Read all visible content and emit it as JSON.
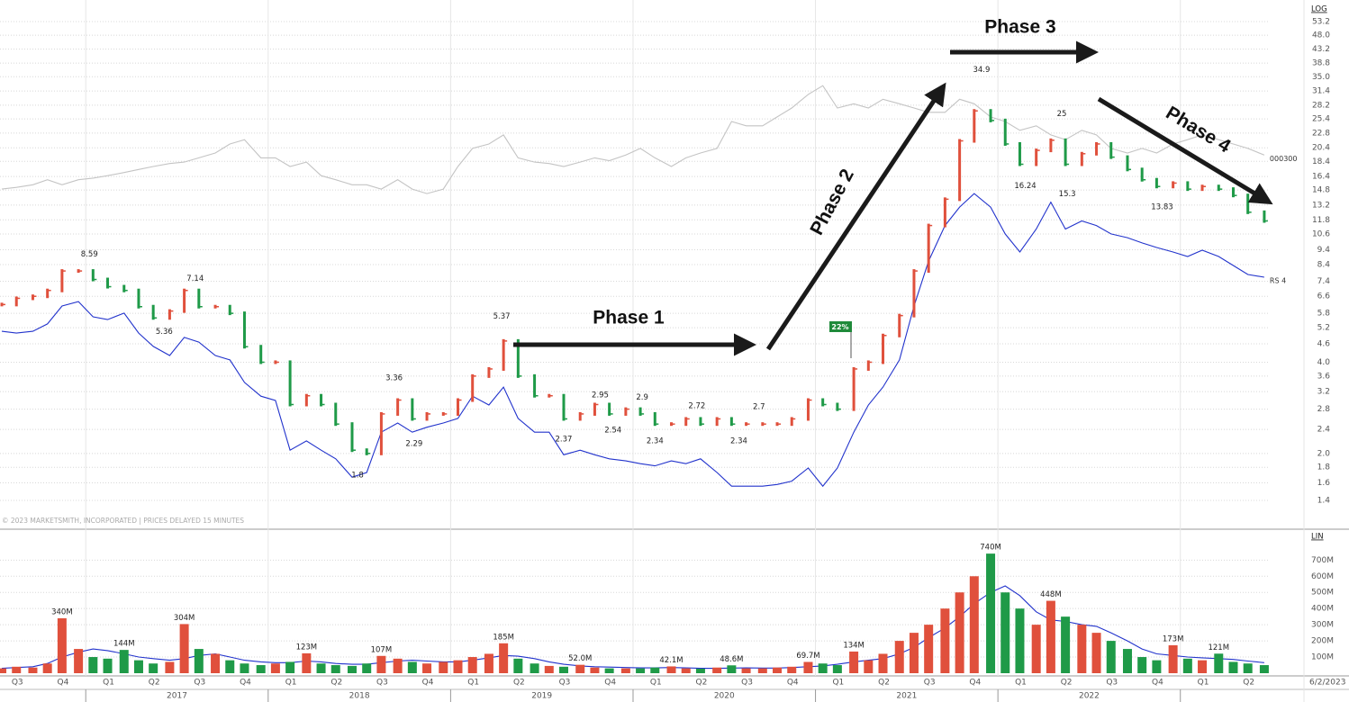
{
  "chart_data": [
    {
      "type": "stock",
      "y_scale_label": "LOG",
      "log_scale": true,
      "grid": true,
      "note": "© 2023 MARKETSMITH, INCORPORATED | PRICES DELAYED 15 MINUTES",
      "badge": "22%",
      "annotations": [
        "Phase 1",
        "Phase 2",
        "Phase 3",
        "Phase 4"
      ],
      "up_color": "#e0503c",
      "down_color": "#1f9a48",
      "xlim": [
        2016.53,
        2023.49
      ],
      "ylim": [
        1.148,
        62.7
      ],
      "yticks": [
        53.2,
        {
          "value": 48,
          "label": "48.0"
        },
        43.2,
        38.8,
        {
          "value": 35,
          "label": "35.0"
        },
        31.4,
        28.2,
        25.4,
        22.8,
        20.4,
        18.4,
        16.4,
        14.8,
        13.2,
        11.8,
        10.6,
        9.4,
        8.4,
        7.4,
        6.6,
        5.8,
        5.2,
        4.6,
        {
          "value": 4,
          "label": "4.0"
        },
        3.6,
        3.2,
        2.8,
        2.4,
        {
          "value": 2,
          "label": "2.0"
        },
        1.8,
        1.6,
        1.4
      ],
      "x": [
        2016.54,
        2016.62,
        2016.71,
        2016.79,
        2016.87,
        2016.96,
        2017.04,
        2017.12,
        2017.21,
        2017.29,
        2017.37,
        2017.46,
        2017.54,
        2017.62,
        2017.71,
        2017.79,
        2017.87,
        2017.96,
        2018.04,
        2018.12,
        2018.21,
        2018.29,
        2018.37,
        2018.46,
        2018.54,
        2018.62,
        2018.71,
        2018.79,
        2018.87,
        2018.96,
        2019.04,
        2019.12,
        2019.21,
        2019.29,
        2019.37,
        2019.46,
        2019.54,
        2019.62,
        2019.71,
        2019.79,
        2019.87,
        2019.96,
        2020.04,
        2020.12,
        2020.21,
        2020.29,
        2020.37,
        2020.46,
        2020.54,
        2020.62,
        2020.71,
        2020.79,
        2020.87,
        2020.96,
        2021.04,
        2021.12,
        2021.21,
        2021.29,
        2021.37,
        2021.46,
        2021.54,
        2021.62,
        2021.71,
        2021.79,
        2021.87,
        2021.96,
        2022.04,
        2022.12,
        2022.21,
        2022.29,
        2022.37,
        2022.46,
        2022.54,
        2022.62,
        2022.71,
        2022.79,
        2022.87,
        2022.96,
        2023.04,
        2023.12,
        2023.21,
        2023.29,
        2023.37,
        2023.46
      ],
      "values": [
        6.2,
        6.5,
        6.6,
        6.9,
        8.0,
        8.0,
        7.5,
        7.1,
        6.9,
        6.1,
        5.6,
        5.9,
        6.9,
        6.1,
        6.1,
        5.8,
        4.5,
        4.0,
        4.0,
        2.9,
        3.1,
        2.9,
        2.5,
        2.05,
        2.0,
        2.7,
        3.0,
        2.6,
        2.7,
        2.7,
        3.0,
        3.6,
        3.8,
        4.7,
        3.6,
        3.1,
        3.1,
        2.6,
        2.7,
        2.9,
        2.7,
        2.8,
        2.7,
        2.5,
        2.5,
        2.6,
        2.5,
        2.6,
        2.5,
        2.5,
        2.5,
        2.5,
        2.6,
        3.0,
        2.9,
        2.8,
        3.8,
        4.0,
        4.9,
        5.7,
        8.0,
        11.3,
        13.8,
        21.5,
        27,
        25.1,
        21,
        18,
        20,
        21.6,
        18,
        19.5,
        21,
        19,
        17.3,
        16,
        15.2,
        15.6,
        14.9,
        15.2,
        14.9,
        14.2,
        12.5,
        11.7
      ],
      "lines": [
        {
          "name": "000300",
          "color": "#c4c4c4",
          "values": [
            14.9,
            15.1,
            15.4,
            16.0,
            15.4,
            16.0,
            16.2,
            16.5,
            16.9,
            17.3,
            17.7,
            18.1,
            18.3,
            18.9,
            19.6,
            21.0,
            21.7,
            18.9,
            18.9,
            17.7,
            18.3,
            16.5,
            16.0,
            15.4,
            15.4,
            14.9,
            16.0,
            14.9,
            14.4,
            14.9,
            17.7,
            20.3,
            21.0,
            22.5,
            18.9,
            18.3,
            18.1,
            17.7,
            18.3,
            18.9,
            18.5,
            19.3,
            20.3,
            18.9,
            17.7,
            18.9,
            19.6,
            20.3,
            24.9,
            24.1,
            24.1,
            25.8,
            27.6,
            30.6,
            32.7,
            27.6,
            28.5,
            27.6,
            29.5,
            28.5,
            27.6,
            26.7,
            26.7,
            29.5,
            28.5,
            25.8,
            24.9,
            23.3,
            24.1,
            22.5,
            21.7,
            23.3,
            22.5,
            20.3,
            19.6,
            20.3,
            19.6,
            21.0,
            21.7,
            22.5,
            21.7,
            21.0,
            20.3,
            19.3
          ]
        },
        {
          "name": "RS 4",
          "color": "#2233cc",
          "values": [
            5.06,
            4.99,
            5.06,
            5.35,
            6.13,
            6.34,
            5.65,
            5.53,
            5.81,
            4.99,
            4.51,
            4.21,
            4.83,
            4.66,
            4.21,
            4.07,
            3.43,
            3.09,
            2.99,
            2.05,
            2.2,
            2.05,
            1.92,
            1.67,
            1.73,
            2.35,
            2.52,
            2.35,
            2.44,
            2.52,
            2.61,
            3.09,
            2.89,
            3.31,
            2.61,
            2.35,
            2.35,
            1.98,
            2.05,
            1.98,
            1.92,
            1.89,
            1.85,
            1.82,
            1.89,
            1.85,
            1.92,
            1.73,
            1.56,
            1.56,
            1.56,
            1.58,
            1.62,
            1.79,
            1.56,
            1.79,
            2.35,
            2.89,
            3.31,
            4.07,
            6.13,
            8.63,
            11.3,
            13.0,
            14.4,
            13.0,
            10.6,
            9.24,
            11.0,
            13.5,
            11.0,
            11.7,
            11.3,
            10.6,
            10.3,
            9.9,
            9.56,
            9.24,
            8.93,
            9.37,
            8.93,
            8.34,
            7.79,
            7.63
          ]
        }
      ],
      "high_labels": [
        {
          "x": 2017.02,
          "value": 8.59
        },
        {
          "x": 2017.6,
          "value": 7.14
        },
        {
          "x": 2019.28,
          "value": 5.37
        },
        {
          "x": 2018.69,
          "value": 3.36
        },
        {
          "x": 2019.82,
          "value": 2.95
        },
        {
          "x": 2020.05,
          "value": 2.9
        },
        {
          "x": 2020.35,
          "value": 2.72
        },
        {
          "x": 2020.69,
          "value": 2.7
        },
        {
          "x": 2021.91,
          "value": 34.9
        },
        {
          "x": 2022.35,
          "value": 25
        }
      ],
      "low_labels": [
        {
          "x": 2017.43,
          "value": 5.36
        },
        {
          "x": 2018.8,
          "value": 2.29
        },
        {
          "x": 2018.49,
          "value": 1.8
        },
        {
          "x": 2019.62,
          "value": 2.37
        },
        {
          "x": 2019.89,
          "value": 2.54
        },
        {
          "x": 2020.12,
          "value": 2.34
        },
        {
          "x": 2020.58,
          "value": 2.34
        },
        {
          "x": 2022.15,
          "value": 16.24
        },
        {
          "x": 2022.38,
          "value": 15.3
        },
        {
          "x": 2022.9,
          "value": 13.83
        }
      ]
    },
    {
      "type": "bar",
      "y_scale_label": "LIN",
      "date_label": "6/2/2023",
      "xlim": [
        2016.53,
        2023.49
      ],
      "ylim": [
        0,
        880
      ],
      "yticks": [
        {
          "value": 100,
          "label": "100M"
        },
        {
          "value": 200,
          "label": "200M"
        },
        {
          "value": 300,
          "label": "300M"
        },
        {
          "value": 400,
          "label": "400M"
        },
        {
          "value": 500,
          "label": "500M"
        },
        {
          "value": 600,
          "label": "600M"
        },
        {
          "value": 700,
          "label": "700M"
        }
      ],
      "xticks": [
        {
          "value": 2016.625,
          "label": "Q3"
        },
        {
          "value": 2016.875,
          "label": "Q4"
        },
        {
          "value": 2017.125,
          "label": "Q1"
        },
        {
          "value": 2017.375,
          "label": "Q2"
        },
        {
          "value": 2017.625,
          "label": "Q3"
        },
        {
          "value": 2017.875,
          "label": "Q4"
        },
        {
          "value": 2018.125,
          "label": "Q1"
        },
        {
          "value": 2018.375,
          "label": "Q2"
        },
        {
          "value": 2018.625,
          "label": "Q3"
        },
        {
          "value": 2018.875,
          "label": "Q4"
        },
        {
          "value": 2019.125,
          "label": "Q1"
        },
        {
          "value": 2019.375,
          "label": "Q2"
        },
        {
          "value": 2019.625,
          "label": "Q3"
        },
        {
          "value": 2019.875,
          "label": "Q4"
        },
        {
          "value": 2020.125,
          "label": "Q1"
        },
        {
          "value": 2020.375,
          "label": "Q2"
        },
        {
          "value": 2020.625,
          "label": "Q3"
        },
        {
          "value": 2020.875,
          "label": "Q4"
        },
        {
          "value": 2021.125,
          "label": "Q1"
        },
        {
          "value": 2021.375,
          "label": "Q2"
        },
        {
          "value": 2021.625,
          "label": "Q3"
        },
        {
          "value": 2021.875,
          "label": "Q4"
        },
        {
          "value": 2022.125,
          "label": "Q1"
        },
        {
          "value": 2022.375,
          "label": "Q2"
        },
        {
          "value": 2022.625,
          "label": "Q3"
        },
        {
          "value": 2022.875,
          "label": "Q4"
        },
        {
          "value": 2023.125,
          "label": "Q1"
        },
        {
          "value": 2023.375,
          "label": "Q2"
        }
      ],
      "year_labels": [
        {
          "value": 2017.5,
          "label": "2017"
        },
        {
          "value": 2018.5,
          "label": "2018"
        },
        {
          "value": 2019.5,
          "label": "2019"
        },
        {
          "value": 2020.5,
          "label": "2020"
        },
        {
          "value": 2021.5,
          "label": "2021"
        },
        {
          "value": 2022.5,
          "label": "2022"
        }
      ],
      "year_gridlines": [
        2017,
        2018,
        2019,
        2020,
        2021,
        2022,
        2023
      ],
      "x": [
        2016.54,
        2016.62,
        2016.71,
        2016.79,
        2016.87,
        2016.96,
        2017.04,
        2017.12,
        2017.21,
        2017.29,
        2017.37,
        2017.46,
        2017.54,
        2017.62,
        2017.71,
        2017.79,
        2017.87,
        2017.96,
        2018.04,
        2018.12,
        2018.21,
        2018.29,
        2018.37,
        2018.46,
        2018.54,
        2018.62,
        2018.71,
        2018.79,
        2018.87,
        2018.96,
        2019.04,
        2019.12,
        2019.21,
        2019.29,
        2019.37,
        2019.46,
        2019.54,
        2019.62,
        2019.71,
        2019.79,
        2019.87,
        2019.96,
        2020.04,
        2020.12,
        2020.21,
        2020.29,
        2020.37,
        2020.46,
        2020.54,
        2020.62,
        2020.71,
        2020.79,
        2020.87,
        2020.96,
        2021.04,
        2021.12,
        2021.21,
        2021.29,
        2021.37,
        2021.46,
        2021.54,
        2021.62,
        2021.71,
        2021.79,
        2021.87,
        2021.96,
        2022.04,
        2022.12,
        2022.21,
        2022.29,
        2022.37,
        2022.46,
        2022.54,
        2022.62,
        2022.71,
        2022.79,
        2022.87,
        2022.96,
        2023.04,
        2023.12,
        2023.21,
        2023.29,
        2023.37,
        2023.46
      ],
      "values": [
        30,
        40,
        35,
        60,
        340,
        150,
        100,
        90,
        144,
        80,
        60,
        70,
        304,
        150,
        120,
        80,
        60,
        50,
        60,
        70,
        123,
        60,
        50,
        45,
        60,
        107,
        90,
        70,
        60,
        70,
        80,
        100,
        120,
        185,
        90,
        60,
        45,
        40,
        52,
        35,
        30,
        30,
        30,
        35,
        42.1,
        30,
        28,
        35,
        48.6,
        30,
        30,
        35,
        40,
        69.7,
        60,
        50,
        134,
        80,
        120,
        200,
        250,
        300,
        400,
        500,
        600,
        740,
        500,
        400,
        300,
        448,
        350,
        300,
        250,
        200,
        150,
        100,
        80,
        173,
        90,
        80,
        121,
        70,
        60,
        50
      ],
      "value_labels": [
        null,
        null,
        null,
        null,
        "340M",
        null,
        null,
        null,
        "144M",
        null,
        null,
        null,
        "304M",
        null,
        null,
        null,
        null,
        null,
        null,
        null,
        "123M",
        null,
        null,
        null,
        null,
        "107M",
        null,
        null,
        null,
        null,
        null,
        null,
        null,
        "185M",
        null,
        null,
        null,
        null,
        "52.0M",
        null,
        null,
        null,
        null,
        null,
        "42.1M",
        null,
        null,
        null,
        "48.6M",
        null,
        null,
        null,
        null,
        "69.7M",
        null,
        null,
        "134M",
        null,
        null,
        null,
        null,
        null,
        null,
        null,
        null,
        "740M",
        null,
        null,
        null,
        "448M",
        null,
        null,
        null,
        null,
        null,
        null,
        null,
        "173M",
        null,
        null,
        "121M",
        null,
        null,
        null
      ],
      "ma_line": {
        "color": "#2233cc",
        "values": [
          30,
          35,
          40,
          60,
          100,
          130,
          150,
          140,
          120,
          100,
          90,
          80,
          90,
          110,
          120,
          100,
          80,
          70,
          65,
          65,
          75,
          70,
          60,
          55,
          55,
          65,
          75,
          80,
          75,
          70,
          70,
          80,
          95,
          110,
          105,
          90,
          70,
          55,
          45,
          40,
          38,
          35,
          33,
          33,
          35,
          33,
          30,
          30,
          32,
          33,
          32,
          32,
          35,
          40,
          45,
          55,
          70,
          80,
          90,
          120,
          160,
          220,
          280,
          350,
          430,
          500,
          540,
          480,
          380,
          330,
          320,
          300,
          290,
          250,
          200,
          150,
          120,
          110,
          100,
          95,
          90,
          85,
          75,
          65
        ]
      }
    }
  ]
}
